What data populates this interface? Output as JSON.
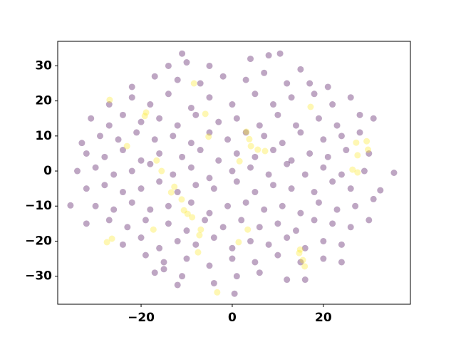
{
  "chart_data": {
    "type": "scatter",
    "xlim": [
      -38.3,
      39.1
    ],
    "ylim": [
      -38.0,
      37.0
    ],
    "xticks": [
      {
        "value": -20,
        "label": "−20"
      },
      0,
      20
    ],
    "yticks": [
      {
        "value": -30,
        "label": "−30"
      },
      {
        "value": -20,
        "label": "−20"
      },
      {
        "value": -10,
        "label": "−10"
      },
      0,
      10,
      20,
      30
    ],
    "grid": false,
    "series": [
      {
        "color": "#440154",
        "x": [
          -14,
          -10,
          -5,
          4,
          8,
          15,
          -11,
          10.5,
          -22,
          -17,
          -12,
          -7,
          -2,
          3,
          7,
          12,
          17,
          21,
          -27,
          -22,
          -18,
          -14,
          -9,
          -5,
          0,
          5,
          9,
          13,
          18,
          22,
          26,
          -31,
          -27,
          -24,
          -20,
          -16,
          -12,
          -8,
          -3,
          1,
          6,
          10,
          14,
          19,
          23,
          28,
          31,
          -33,
          -29,
          -25,
          -21,
          -17,
          -13,
          -9,
          -5,
          -1,
          3,
          7,
          11,
          15,
          20,
          24,
          28,
          -32,
          -28,
          -24,
          -20,
          -16,
          -11,
          -7,
          -3,
          1,
          5,
          9,
          13,
          17,
          21,
          25,
          30,
          -34,
          -30,
          -26,
          -22,
          -18,
          -13,
          -9,
          -5,
          0,
          4,
          8,
          12,
          16,
          20,
          24,
          29,
          35.5,
          -32,
          -28,
          -24,
          -20,
          -16,
          -12,
          -8,
          -4,
          1,
          5,
          9,
          13,
          18,
          22,
          26,
          32.5,
          -35.5,
          -30,
          -26,
          -22,
          -18,
          -14,
          -9,
          -5,
          -1,
          3,
          7,
          11,
          15,
          19,
          23,
          27,
          31,
          -32,
          -27,
          -23,
          -19,
          -14,
          -10,
          -6,
          -2,
          2,
          6,
          10,
          14,
          18,
          22,
          26,
          30,
          -24,
          -20,
          -16,
          -12,
          -8,
          -4,
          0,
          4,
          8,
          12,
          16,
          20,
          24,
          -19,
          -15,
          -10,
          -5,
          0,
          5,
          10,
          15,
          20,
          24,
          -15,
          -11,
          -4,
          1,
          6,
          12,
          16,
          -12,
          0.5,
          -17
        ],
        "values": [
          30,
          31,
          30,
          32,
          33,
          29,
          33.5,
          33.5,
          24,
          27,
          26,
          25,
          27,
          26,
          28,
          25,
          25,
          24,
          19,
          21,
          19,
          22,
          18,
          21,
          19,
          22,
          19,
          21,
          22,
          19,
          21,
          15,
          13,
          16,
          14,
          15,
          13,
          16,
          14,
          15,
          13,
          16,
          13,
          15,
          13,
          16,
          15,
          8,
          10,
          9,
          11,
          9,
          10,
          8,
          11,
          9,
          11,
          10,
          8,
          11,
          9,
          10,
          11,
          5,
          4,
          6,
          3,
          5,
          4,
          6,
          3,
          5,
          4,
          6,
          3,
          5,
          4,
          6,
          5,
          0,
          1,
          -1,
          0,
          2,
          -1,
          1,
          -2,
          0,
          1,
          -1,
          2,
          -1,
          1,
          -1,
          0,
          -0.5,
          -5,
          -4,
          -6,
          -5,
          -3,
          -6,
          -4,
          -5,
          -3,
          -6,
          -4,
          -5,
          -6,
          -3,
          -5,
          -5.5,
          -9.8,
          -10,
          -11,
          -9,
          -11,
          -10,
          -9,
          -12,
          -10,
          -9,
          -11,
          -10,
          -12,
          -9,
          -11,
          -10,
          -8,
          -15,
          -14,
          -16,
          -14,
          -15,
          -17,
          -14,
          -16,
          -14,
          -16,
          -15,
          -17,
          -14,
          -15,
          -16,
          -14,
          -21,
          -19,
          -22,
          -20,
          -21,
          -19,
          -22,
          -20,
          -21,
          -19,
          -22,
          -20,
          -21,
          -24,
          -26,
          -25,
          -27,
          -25,
          -26,
          -24,
          -26,
          -25,
          -26,
          -28,
          -30,
          -32,
          -30,
          -29,
          -31,
          -31,
          -32.5,
          -35,
          -29
        ]
      },
      {
        "color": "#fde725",
        "x": [
          -26.9,
          -18.9,
          -19.2,
          -23.1,
          -16.6,
          -15.5,
          -12.7,
          -13.4,
          -11.1,
          -10.6,
          -9.8,
          -8.8,
          -6.9,
          -7.2,
          -7.5,
          -17.3,
          -27.5,
          -26.4,
          -8.4,
          -5.9,
          -5.2,
          3.1,
          3.75,
          4.1,
          5.6,
          7.2,
          1.6,
          3.4,
          1.4,
          -3.3,
          14.7,
          15.5,
          15.9,
          14.9,
          17.2,
          27.2,
          29.5,
          29.8,
          27.5,
          26.4,
          27.5
        ],
        "values": [
          20.3,
          16.7,
          15.7,
          7.1,
          3.0,
          0,
          -4.5,
          -6.1,
          -8.1,
          -11.2,
          -12.2,
          -13.2,
          -16.7,
          -18.3,
          -23.2,
          -16.7,
          -20.3,
          -19.3,
          25.0,
          16.3,
          9.8,
          11.2,
          9.1,
          7.1,
          6.1,
          5.7,
          2.8,
          -16.7,
          -20.3,
          -34.6,
          -23.4,
          -25.4,
          -27.2,
          -22.4,
          18.3,
          8.1,
          8.5,
          6.1,
          4.5,
          0.4,
          -0.4
        ]
      }
    ]
  }
}
